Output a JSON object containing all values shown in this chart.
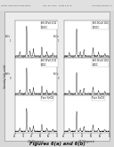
{
  "title": "Figures 6(a) and 6(b)",
  "header_left": "Patent Application Publication",
  "header_mid": "Sep. 30, 2010   Sheet 6 of 10",
  "header_right": "US 2010/0244001 A1",
  "bg_color": "#f0f0f0",
  "fig_bg": "#e8e8e8",
  "panel_bg": "#ffffff",
  "col_a": {
    "panels": [
      {
        "annotation": "Sn0.9Fe0.1O2\n1200C",
        "ylabel_left": "SnFe\n1",
        "peaks": [
          26,
          34,
          38,
          42,
          52,
          58,
          65
        ],
        "heights": [
          0.15,
          1.0,
          0.18,
          0.25,
          0.3,
          0.15,
          0.1
        ],
        "has_xticks": false
      },
      {
        "annotation": "Sn0.9Fe0.1O2\n800C",
        "ylabel_left": "SnFe\n0",
        "peaks": [
          26,
          34,
          38,
          42,
          52,
          58,
          65
        ],
        "heights": [
          0.12,
          0.85,
          0.15,
          0.2,
          0.25,
          0.12,
          0.08
        ],
        "has_xticks": false
      },
      {
        "annotation": "Pure SnO2",
        "ylabel_left": "",
        "peaks": [
          26,
          34,
          38,
          42,
          52,
          58,
          65
        ],
        "heights": [
          0.1,
          0.75,
          0.12,
          0.18,
          0.22,
          0.1,
          0.06
        ],
        "has_xticks": true
      }
    ],
    "xlabel": "2T (Degrees)",
    "xrange": [
      20,
      70
    ],
    "xticks": [
      20,
      30,
      40,
      50,
      60,
      70
    ],
    "intensity_label": "Intensity (arb. units)"
  },
  "col_b": {
    "panels": [
      {
        "annotation": "Sn0.9Co0.1O2\n1200C",
        "ylabel_left": "SnCo\n1",
        "peaks": [
          26,
          34,
          38,
          42,
          52,
          58,
          65
        ],
        "heights": [
          0.12,
          0.9,
          0.15,
          0.22,
          0.28,
          0.13,
          0.09
        ],
        "has_xticks": false
      },
      {
        "annotation": "Sn0.9Co0.1O2\n800C",
        "ylabel_left": "SnCo\n0",
        "peaks": [
          26,
          34,
          38,
          42,
          52,
          58,
          65
        ],
        "heights": [
          0.1,
          0.7,
          0.12,
          0.18,
          0.22,
          0.1,
          0.07
        ],
        "has_xticks": false
      },
      {
        "annotation": "Pure SnO2",
        "ylabel_left": "",
        "peaks": [
          26,
          34,
          38,
          42,
          52,
          58,
          65
        ],
        "heights": [
          0.08,
          0.65,
          0.1,
          0.15,
          0.2,
          0.09,
          0.05
        ],
        "has_xticks": true
      }
    ],
    "xlabel": "2T (Degrees)",
    "xrange": [
      20,
      70
    ],
    "xticks": [
      20,
      30,
      40,
      50,
      60,
      70
    ],
    "intensity_label": "Intensity (arb. units)"
  }
}
